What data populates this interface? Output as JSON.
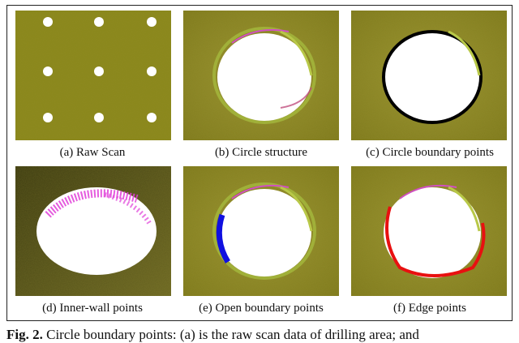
{
  "panels": [
    {
      "caption": "(a) Raw Scan"
    },
    {
      "caption": "(b) Circle structure"
    },
    {
      "caption": "(c) Circle boundary points"
    },
    {
      "caption": "(d) Inner-wall points"
    },
    {
      "caption": "(e) Open boundary points"
    },
    {
      "caption": "(f) Edge points"
    }
  ],
  "figure_caption": {
    "label": "Fig. 2.",
    "text": "Circle boundary points: (a) is the raw scan data of drilling area; and"
  },
  "colors": {
    "surface": "#8b8a1e",
    "hole": "#ffffff",
    "boundary_black": "#000000",
    "inner_wall": "#e040d8",
    "open_boundary": "#1010e0",
    "edge": "#e81010"
  }
}
